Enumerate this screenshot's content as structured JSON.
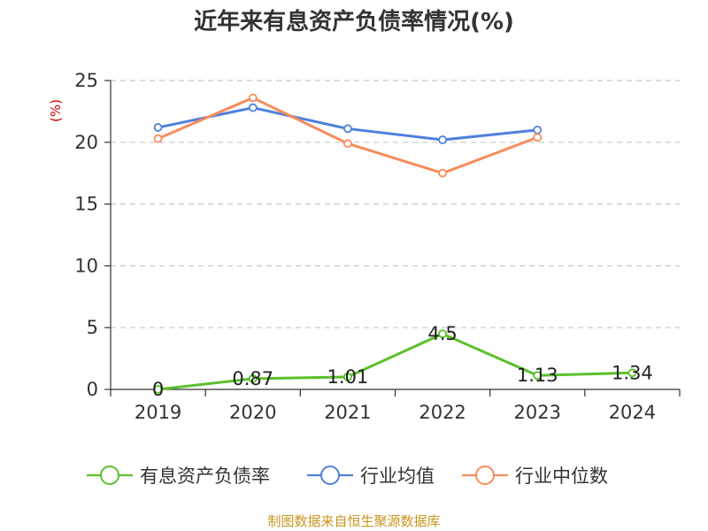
{
  "chart_data": {
    "type": "line",
    "title": "近年来有息资产负债率情况(%)",
    "ylabel": "(%)",
    "xlabel": "",
    "categories": [
      "2019",
      "2020",
      "2021",
      "2022",
      "2023",
      "2024"
    ],
    "ylim": [
      0,
      25
    ],
    "yticks": [
      0,
      5,
      10,
      15,
      20,
      25
    ],
    "grid": true,
    "legend_position": "bottom",
    "series": [
      {
        "name": "有息资产负债率",
        "color": "#5bc02c",
        "values": [
          0,
          0.87,
          1.01,
          4.5,
          1.13,
          1.34
        ],
        "labels": [
          "0",
          "0.87",
          "1.01",
          "4.5",
          "1.13",
          "1.34"
        ]
      },
      {
        "name": "行业均值",
        "color": "#4f80dc",
        "values": [
          21.2,
          22.8,
          21.1,
          20.2,
          21.0,
          null
        ]
      },
      {
        "name": "行业中位数",
        "color": "#f78c5a",
        "values": [
          20.3,
          23.6,
          19.9,
          17.5,
          20.4,
          null
        ]
      }
    ]
  },
  "footer": {
    "source": "制图数据来自恒生聚源数据库"
  }
}
